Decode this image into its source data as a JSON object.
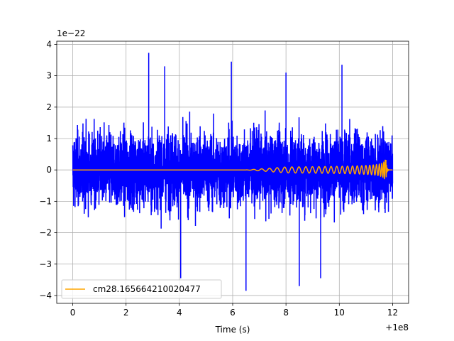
{
  "chart_data": {
    "type": "line",
    "xlabel": "Time (s)",
    "ylabel": "",
    "x_offset_label": "+1e8",
    "y_scale_label": "1e−22",
    "xlim": [
      -0.6,
      12.6
    ],
    "ylim": [
      -4.25,
      4.1
    ],
    "x_range": [
      0,
      12
    ],
    "x_ticks": [
      0,
      2,
      4,
      6,
      8,
      10,
      12
    ],
    "x_tick_labels": [
      "0",
      "2",
      "4",
      "6",
      "8",
      "10",
      "12"
    ],
    "y_ticks": [
      -4,
      -3,
      -2,
      -1,
      0,
      1,
      2,
      3,
      4
    ],
    "y_tick_labels": [
      "−4",
      "−3",
      "−2",
      "−1",
      "0",
      "1",
      "2",
      "3",
      "4"
    ],
    "grid": true,
    "legend": {
      "placement": "lower-left"
    },
    "series": [
      {
        "kind": "noise",
        "color": "#0000ff",
        "typical_amplitude": 2.2,
        "max_value": 3.73,
        "min_value": -3.9
      },
      {
        "name": "cm28.165664210020477",
        "kind": "chirp",
        "color": "#ffa500",
        "merger_time": 11.75,
        "peak_amplitude": 0.35
      }
    ]
  }
}
